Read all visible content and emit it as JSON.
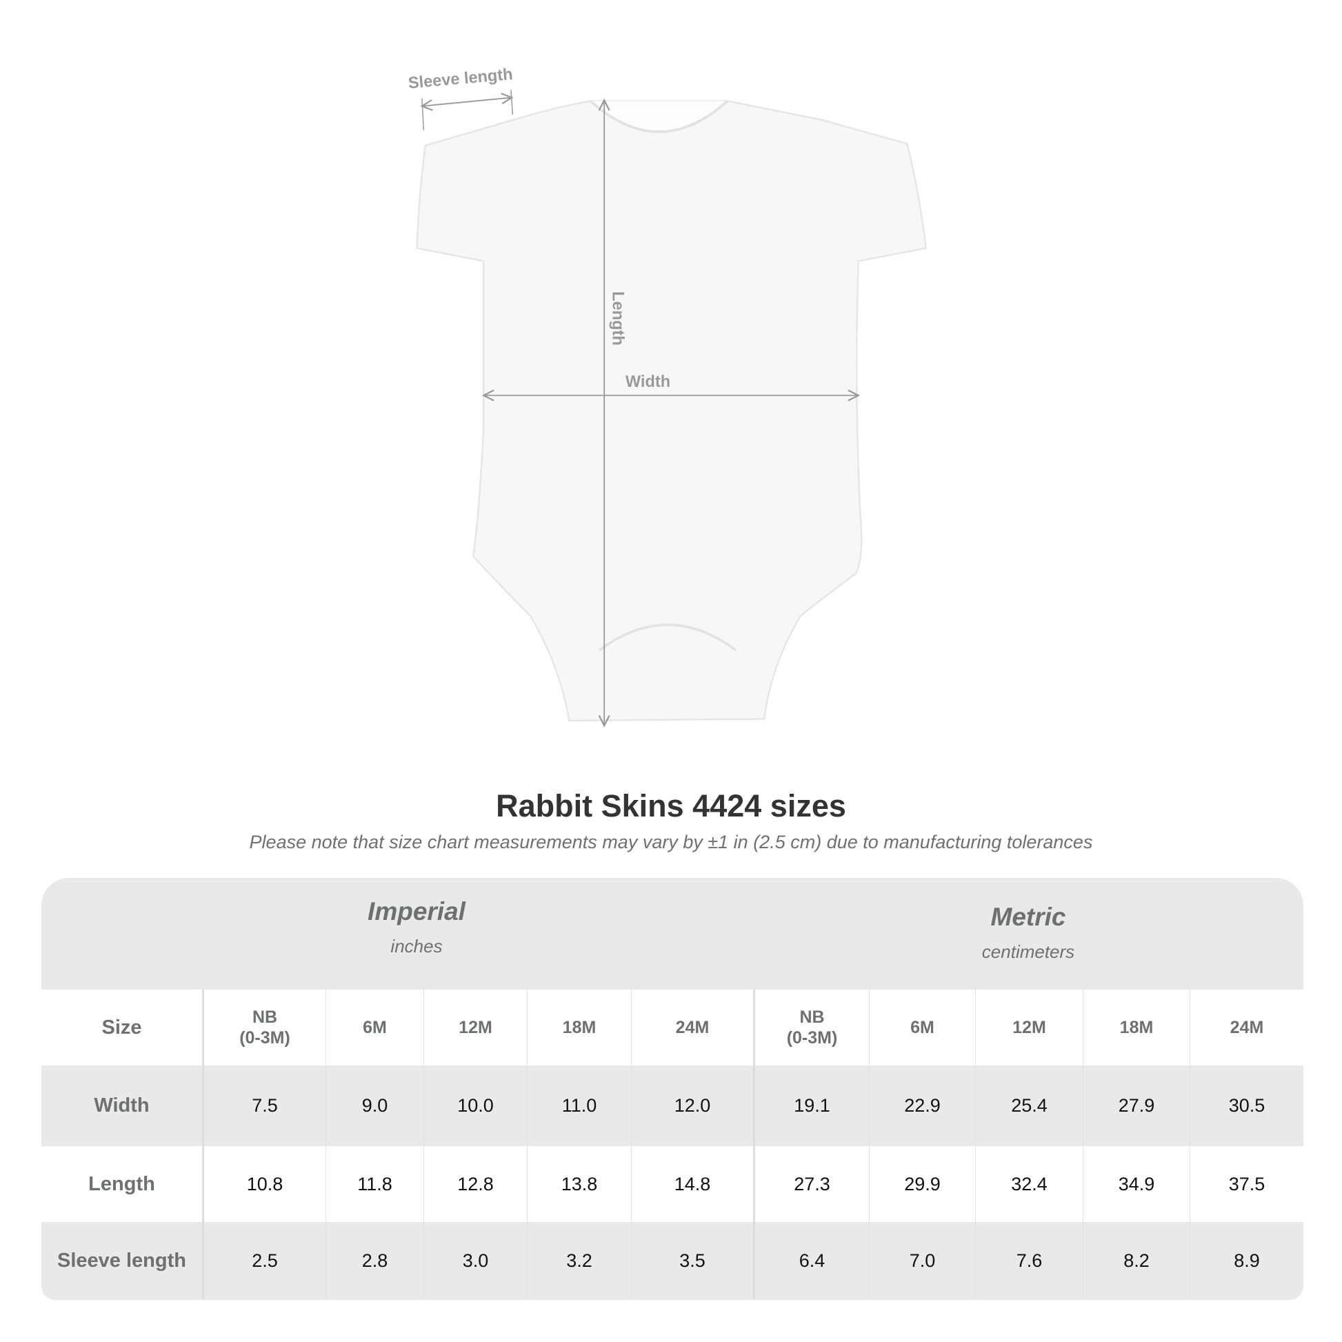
{
  "diagram": {
    "labels": {
      "sleeve": "Sleeve length",
      "length": "Length",
      "width": "Width"
    },
    "line_color": "#999999"
  },
  "title": "Rabbit Skins 4424 sizes",
  "subtitle": "Please note that size chart measurements may vary by ±1 in (2.5 cm) due to manufacturing tolerances",
  "table": {
    "groups": [
      {
        "name": "Imperial",
        "unit": "inches"
      },
      {
        "name": "Metric",
        "unit": "centimeters"
      }
    ],
    "size_label": "Size",
    "sizes": [
      "NB\n(0-3M)",
      "6M",
      "12M",
      "18M",
      "24M"
    ],
    "rows": [
      {
        "label": "Width",
        "imperial": [
          "7.5",
          "9.0",
          "10.0",
          "11.0",
          "12.0"
        ],
        "metric": [
          "19.1",
          "22.9",
          "25.4",
          "27.9",
          "30.5"
        ]
      },
      {
        "label": "Length",
        "imperial": [
          "10.8",
          "11.8",
          "12.8",
          "13.8",
          "14.8"
        ],
        "metric": [
          "27.3",
          "29.9",
          "32.4",
          "34.9",
          "37.5"
        ]
      },
      {
        "label": "Sleeve length",
        "imperial": [
          "2.5",
          "2.8",
          "3.0",
          "3.2",
          "3.5"
        ],
        "metric": [
          "6.4",
          "7.0",
          "7.6",
          "8.2",
          "8.9"
        ]
      }
    ]
  }
}
